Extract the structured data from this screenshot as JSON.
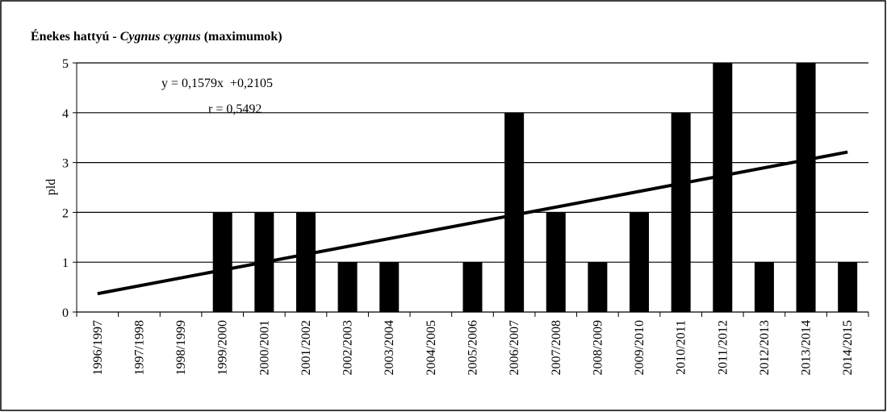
{
  "chart_data": {
    "type": "bar",
    "title": [
      "Énekes hattyú - ",
      "Cygnus cygnus",
      " (maximumok)"
    ],
    "ylabel": "pld",
    "categories": [
      "1996/1997",
      "1997/1998",
      "1998/1999",
      "1999/2000",
      "2000/2001",
      "2001/2002",
      "2002/2003",
      "2003/2004",
      "2004/2005",
      "2005/2006",
      "2006/2007",
      "2007/2008",
      "2008/2009",
      "2009/2010",
      "2010/2011",
      "2011/2012",
      "2012/2013",
      "2013/2014",
      "2014/2015"
    ],
    "values": [
      0,
      0,
      0,
      2,
      2,
      2,
      1,
      1,
      0,
      1,
      4,
      2,
      1,
      2,
      4,
      5,
      1,
      5,
      1
    ],
    "color": "#000000",
    "ylim": [
      0,
      5
    ],
    "yticks": [
      0,
      1,
      2,
      3,
      4,
      5
    ],
    "grid": true,
    "trendline": {
      "label": "y = 0,1579x  +0,2105",
      "slope": 0.1579,
      "intercept": 0.2105,
      "r_label": "r = 0,5492"
    }
  }
}
